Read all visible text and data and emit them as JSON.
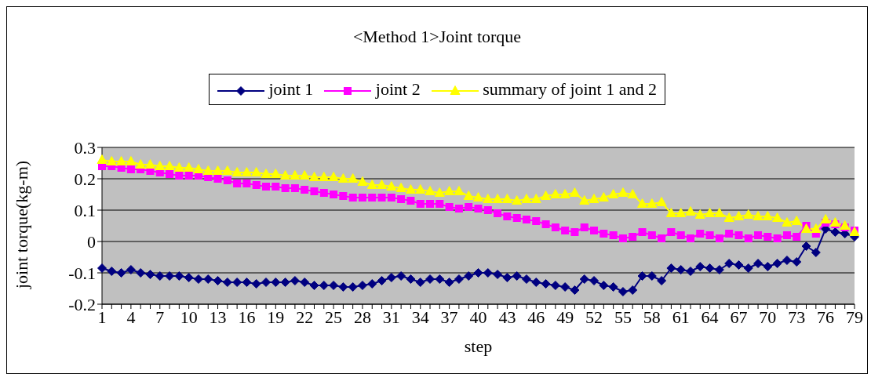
{
  "chart_data": {
    "type": "line",
    "title": "<Method 1>Joint torque",
    "xlabel": "step",
    "ylabel": "joint torque(kg-m)",
    "categories": [
      "1",
      null,
      null,
      "4",
      null,
      null,
      "7",
      null,
      null,
      "10",
      null,
      null,
      "13",
      null,
      null,
      "16",
      null,
      null,
      "19",
      null,
      null,
      "22",
      null,
      null,
      "25",
      null,
      null,
      "28",
      null,
      null,
      "31",
      null,
      null,
      "34",
      null,
      null,
      "37",
      null,
      null,
      "40",
      null,
      null,
      "43",
      null,
      null,
      "46",
      null,
      null,
      "49",
      null,
      null,
      "52",
      null,
      null,
      "55",
      null,
      null,
      "58",
      null,
      null,
      "61",
      null,
      null,
      "64",
      null,
      null,
      "67",
      null,
      null,
      "70",
      null,
      null,
      "73",
      null,
      null,
      "76",
      null,
      null,
      "79"
    ],
    "series": [
      {
        "name": "joint 1",
        "color": "#000080",
        "marker": "diamond",
        "values": [
          -0.085,
          -0.095,
          -0.1,
          -0.09,
          -0.1,
          -0.105,
          -0.11,
          -0.11,
          -0.11,
          -0.115,
          -0.12,
          -0.12,
          -0.125,
          -0.13,
          -0.13,
          -0.13,
          -0.135,
          -0.13,
          -0.13,
          -0.13,
          -0.125,
          -0.13,
          -0.14,
          -0.14,
          -0.14,
          -0.145,
          -0.145,
          -0.14,
          -0.135,
          -0.125,
          -0.115,
          -0.11,
          -0.12,
          -0.13,
          -0.12,
          -0.12,
          -0.13,
          -0.12,
          -0.11,
          -0.1,
          -0.1,
          -0.105,
          -0.115,
          -0.11,
          -0.12,
          -0.13,
          -0.135,
          -0.14,
          -0.145,
          -0.155,
          -0.12,
          -0.125,
          -0.14,
          -0.145,
          -0.16,
          -0.155,
          -0.11,
          -0.11,
          -0.125,
          -0.085,
          -0.09,
          -0.095,
          -0.08,
          -0.085,
          -0.09,
          -0.07,
          -0.075,
          -0.085,
          -0.07,
          -0.08,
          -0.07,
          -0.06,
          -0.065,
          -0.015,
          -0.035,
          0.04,
          0.03,
          0.025,
          0.015
        ]
      },
      {
        "name": "joint 2",
        "color": "#ff00ff",
        "marker": "square",
        "values": [
          0.24,
          0.24,
          0.235,
          0.23,
          0.23,
          0.225,
          0.22,
          0.215,
          0.21,
          0.21,
          0.21,
          0.205,
          0.2,
          0.195,
          0.185,
          0.185,
          0.18,
          0.175,
          0.175,
          0.17,
          0.17,
          0.165,
          0.16,
          0.155,
          0.15,
          0.145,
          0.14,
          0.14,
          0.14,
          0.14,
          0.14,
          0.135,
          0.13,
          0.12,
          0.12,
          0.12,
          0.11,
          0.105,
          0.11,
          0.105,
          0.1,
          0.09,
          0.08,
          0.075,
          0.07,
          0.065,
          0.055,
          0.045,
          0.035,
          0.03,
          0.045,
          0.035,
          0.025,
          0.02,
          0.01,
          0.015,
          0.03,
          0.02,
          0.01,
          0.03,
          0.02,
          0.01,
          0.025,
          0.02,
          0.01,
          0.025,
          0.02,
          0.01,
          0.02,
          0.015,
          0.01,
          0.02,
          0.015,
          0.05,
          0.025,
          0.06,
          0.055,
          0.045,
          0.035
        ]
      },
      {
        "name": "summary of joint 1 and 2",
        "color": "#ffff00",
        "marker": "triangle",
        "values": [
          0.26,
          0.255,
          0.255,
          0.255,
          0.245,
          0.245,
          0.24,
          0.24,
          0.235,
          0.235,
          0.23,
          0.225,
          0.225,
          0.225,
          0.22,
          0.22,
          0.22,
          0.215,
          0.215,
          0.21,
          0.21,
          0.21,
          0.205,
          0.205,
          0.205,
          0.2,
          0.2,
          0.19,
          0.18,
          0.18,
          0.175,
          0.17,
          0.165,
          0.165,
          0.16,
          0.155,
          0.16,
          0.16,
          0.145,
          0.14,
          0.135,
          0.135,
          0.135,
          0.13,
          0.135,
          0.135,
          0.145,
          0.15,
          0.15,
          0.155,
          0.13,
          0.135,
          0.14,
          0.15,
          0.155,
          0.15,
          0.12,
          0.12,
          0.125,
          0.09,
          0.09,
          0.095,
          0.085,
          0.09,
          0.09,
          0.075,
          0.08,
          0.085,
          0.08,
          0.08,
          0.075,
          0.06,
          0.065,
          0.04,
          0.04,
          0.07,
          0.06,
          0.05,
          0.03
        ]
      }
    ],
    "ylim": [
      -0.2,
      0.3
    ],
    "yticks": [
      -0.2,
      -0.1,
      0,
      0.1,
      0.2,
      0.3
    ],
    "grid": "y",
    "legend": "top"
  }
}
